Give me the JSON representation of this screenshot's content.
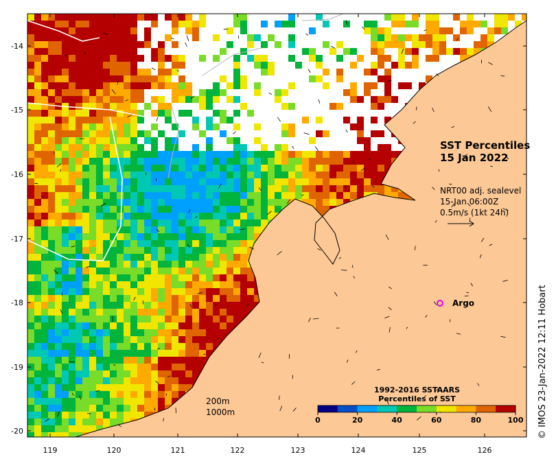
{
  "map": {
    "title_line1": "SST Percentiles",
    "title_line2": "15 Jan 2022",
    "current_model": "NRT00 adj. sealevel",
    "current_time": "15-Jan 06:00Z",
    "current_scale": "0.5m/s (1kt 24h)",
    "argo_label": "Argo",
    "argo_marker_color": "#e000e0",
    "contour_200": "200m",
    "contour_1000": "1000m",
    "credit": "© IMOS 23-Jan-2022 12:11 Hobart",
    "land_color": "#fcc896",
    "lat_ticks": [
      "-14",
      "-15",
      "-16",
      "-17",
      "-18",
      "-19",
      "-20"
    ],
    "lon_ticks": [
      "119",
      "120",
      "121",
      "122",
      "123",
      "124",
      "125",
      "126"
    ]
  },
  "colorbar": {
    "title_line1": "1992-2016 SSTAARS",
    "title_line2": "Percentiles of SST",
    "colors": [
      "#000080",
      "#0050c8",
      "#00a0ff",
      "#00c8b4",
      "#00b43c",
      "#78dc28",
      "#f0e600",
      "#ffaa00",
      "#e06400",
      "#b40000"
    ],
    "tick_labels": [
      "0",
      "20",
      "40",
      "60",
      "80",
      "100"
    ]
  }
}
